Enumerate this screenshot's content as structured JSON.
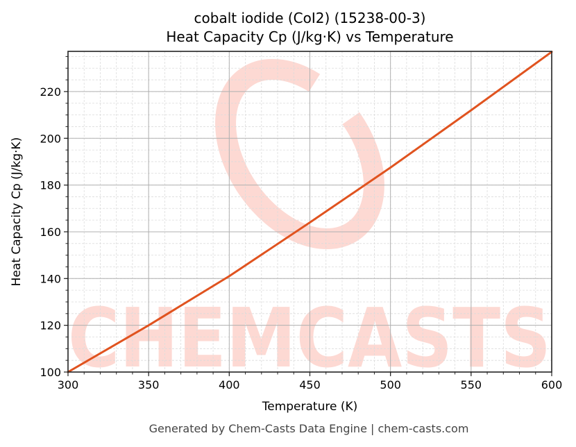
{
  "chart_data": {
    "type": "line",
    "title": "cobalt iodide (CoI2) (15238-00-3)",
    "subtitle": "Heat Capacity Cp (J/kg·K) vs Temperature",
    "xlabel": "Temperature (K)",
    "ylabel": "Heat Capacity Cp (J/kg·K)",
    "xlim": [
      300,
      600
    ],
    "ylim": [
      100,
      237.2
    ],
    "x_ticks": [
      300,
      350,
      400,
      450,
      500,
      550,
      600
    ],
    "y_ticks": [
      100,
      120,
      140,
      160,
      180,
      200,
      220
    ],
    "grid": true,
    "legend": null,
    "series": [
      {
        "name": "Cp",
        "color": "#e0531f",
        "x": [
          300,
          350,
          400,
          450,
          500,
          550,
          600
        ],
        "values": [
          100,
          120,
          141,
          164,
          187.5,
          212,
          237
        ]
      }
    ]
  },
  "footer": "Generated by Chem-Casts Data Engine | chem-casts.com",
  "watermark": {
    "text": "CHEMCASTS",
    "color": "#fdd9d3"
  }
}
